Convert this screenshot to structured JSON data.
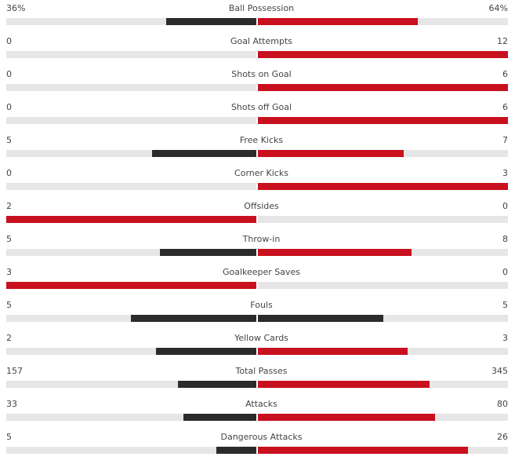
{
  "colors": {
    "leader": "#c8101e",
    "trailer": "#2b2b2b",
    "track": "#e6e6e6"
  },
  "stats": [
    {
      "name": "Ball Possession",
      "home": "36%",
      "away": "64%",
      "home_value": 36,
      "away_value": 64
    },
    {
      "name": "Goal Attempts",
      "home": "0",
      "away": "12",
      "home_value": 0,
      "away_value": 12
    },
    {
      "name": "Shots on Goal",
      "home": "0",
      "away": "6",
      "home_value": 0,
      "away_value": 6
    },
    {
      "name": "Shots off Goal",
      "home": "0",
      "away": "6",
      "home_value": 0,
      "away_value": 6
    },
    {
      "name": "Free Kicks",
      "home": "5",
      "away": "7",
      "home_value": 5,
      "away_value": 7
    },
    {
      "name": "Corner Kicks",
      "home": "0",
      "away": "3",
      "home_value": 0,
      "away_value": 3
    },
    {
      "name": "Offsides",
      "home": "2",
      "away": "0",
      "home_value": 2,
      "away_value": 0
    },
    {
      "name": "Throw-in",
      "home": "5",
      "away": "8",
      "home_value": 5,
      "away_value": 8
    },
    {
      "name": "Goalkeeper Saves",
      "home": "3",
      "away": "0",
      "home_value": 3,
      "away_value": 0
    },
    {
      "name": "Fouls",
      "home": "5",
      "away": "5",
      "home_value": 5,
      "away_value": 5
    },
    {
      "name": "Yellow Cards",
      "home": "2",
      "away": "3",
      "home_value": 2,
      "away_value": 3
    },
    {
      "name": "Total Passes",
      "home": "157",
      "away": "345",
      "home_value": 157,
      "away_value": 345
    },
    {
      "name": "Attacks",
      "home": "33",
      "away": "80",
      "home_value": 33,
      "away_value": 80
    },
    {
      "name": "Dangerous Attacks",
      "home": "5",
      "away": "26",
      "home_value": 5,
      "away_value": 26
    }
  ]
}
